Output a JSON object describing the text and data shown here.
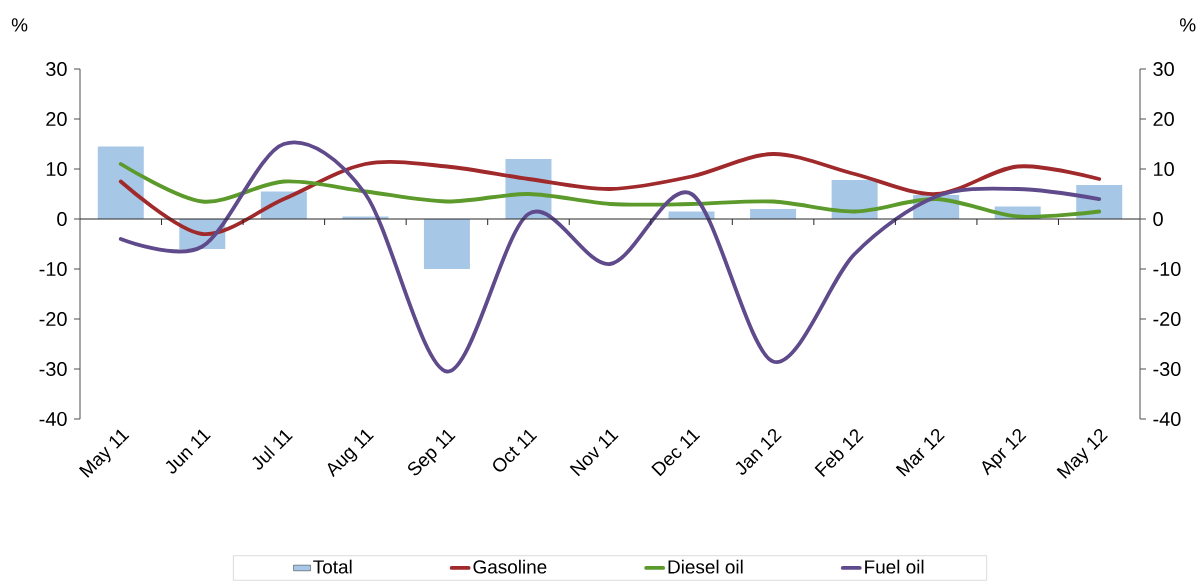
{
  "chart_data": {
    "type": "line",
    "ylabel": "%",
    "y2label": "%",
    "categories": [
      "May 11",
      "Jun 11",
      "Jul 11",
      "Aug 11",
      "Sep 11",
      "Oct 11",
      "Nov 11",
      "Dec 11",
      "Jan 12",
      "Feb 12",
      "Mar 12",
      "Apr 12",
      "May 12"
    ],
    "series": [
      {
        "name": "Total",
        "type": "bar",
        "color": "#a7c7e7",
        "values": [
          14.5,
          -6,
          5.5,
          0.5,
          -10,
          12,
          0,
          1.5,
          2,
          7.8,
          4.8,
          2.5,
          6.8
        ]
      },
      {
        "name": "Gasoline",
        "color": "#a0292b",
        "values": [
          7.5,
          -3,
          4,
          11,
          10.5,
          8,
          6,
          8.5,
          13,
          9,
          5,
          10.5,
          8
        ]
      },
      {
        "name": "Diesel oil",
        "color": "#5c9a2b",
        "values": [
          11,
          3.5,
          7.5,
          5.5,
          3.5,
          5,
          3,
          3,
          3.5,
          1.5,
          4,
          0.5,
          1.5
        ]
      },
      {
        "name": "Fuel oil",
        "color": "#5f4b8b",
        "values": [
          -4,
          -5.5,
          15,
          5,
          -30.5,
          1,
          -9,
          5,
          -28.5,
          -7,
          4.5,
          6,
          4
        ]
      }
    ],
    "ylim": [
      -40,
      30
    ],
    "yticks": [
      -40,
      -30,
      -20,
      -10,
      0,
      10,
      20,
      30
    ],
    "y2lim": [
      -40,
      30
    ],
    "y2ticks": [
      -40,
      -30,
      -20,
      -10,
      0,
      10,
      20,
      30
    ],
    "legend": "bottom"
  }
}
